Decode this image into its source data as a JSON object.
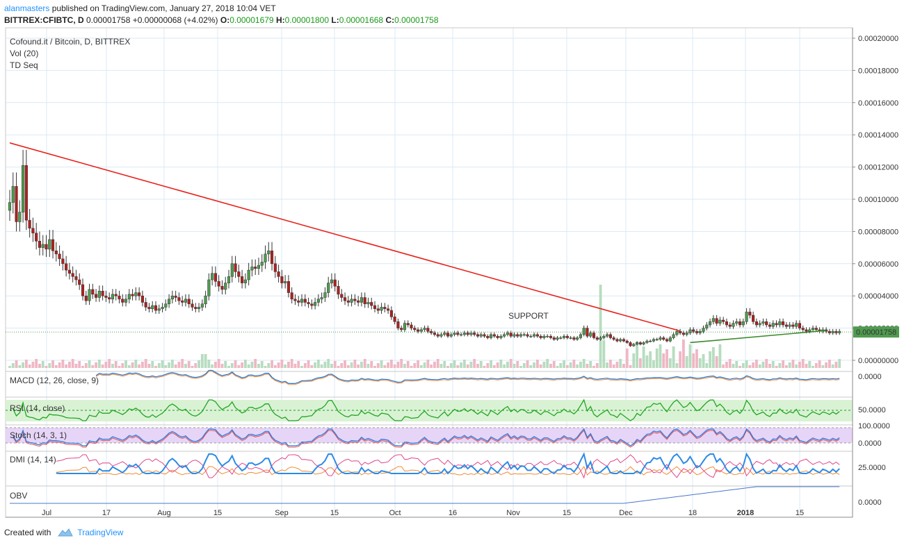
{
  "header": {
    "author": "alanmasters",
    "published_text": "published on TradingView.com, January 27, 2018 10:04 VET",
    "symbol": "BITTREX:CFIBTC, D",
    "last": "0.00001758",
    "change": "+0.00000068 (+4.02%)",
    "open_label": "O:",
    "open": "0.00001679",
    "high_label": "H:",
    "high": "0.00001800",
    "low_label": "L:",
    "low": "0.00001668",
    "close_label": "C:",
    "close": "0.00001758"
  },
  "footer": {
    "created_with": "Created with",
    "brand": "TradingView"
  },
  "colors": {
    "up": "#4f9b4f",
    "down": "#b0201e",
    "trendline": "#e8221b",
    "support_line": "#3a8a2a",
    "macd": "#1e74d6",
    "signal": "#f08a33",
    "rsi": "#22a522",
    "rsi_band": "#d9f2d4",
    "stoch_band": "#e6d5f7",
    "stoch_k": "#2b7be0",
    "stoch_d": "#e34b4b",
    "dmi_plus": "#2b8be6",
    "dmi_minus": "#e0458b",
    "adx": "#f08a33",
    "obv": "#4a78c8",
    "last_price_tag": "#4f9b4f"
  },
  "chart_data": {
    "type": "candlestick",
    "title": "Cofound.it / Bitcoin, D, BITTREX",
    "indicators_main": [
      "Vol (20)",
      "TD Seq"
    ],
    "annotation": "SUPPORT",
    "last_price_label": "0.00001758",
    "y_ticks": [
      "0.00020000",
      "0.00018000",
      "0.00016000",
      "0.00014000",
      "0.00012000",
      "0.00010000",
      "0.00008000",
      "0.00006000",
      "0.00004000",
      "0.00002000",
      "0.00000000"
    ],
    "ylim": [
      0,
      0.0002
    ],
    "x_ticks": [
      "Jul",
      "17",
      "Aug",
      "15",
      "Sep",
      "15",
      "Oct",
      "16",
      "Nov",
      "15",
      "Dec",
      "18",
      "2018",
      "15"
    ],
    "trendline": {
      "from": [
        0,
        0.000135
      ],
      "to": [
        202,
        1.82e-05
      ]
    },
    "support_line": {
      "from": [
        205,
        1.1e-05
      ],
      "to": [
        246,
        1.85e-05
      ]
    },
    "close_series": [
      9.8e-05,
      0.000108,
      8.6e-05,
      9.2e-05,
      0.000121,
      8.7e-05,
      8.2e-05,
      7.9e-05,
      7.4e-05,
      7e-05,
      7.2e-05,
      6.9e-05,
      7.5e-05,
      6.8e-05,
      6.6e-05,
      6.3e-05,
      6e-05,
      5.6e-05,
      5.4e-05,
      5.2e-05,
      5e-05,
      4.7e-05,
      4e-05,
      3.7e-05,
      4.4e-05,
      4.1e-05,
      3.9e-05,
      4.3e-05,
      4e-05,
      3.9e-05,
      3.8e-05,
      4.1e-05,
      4e-05,
      3.8e-05,
      3.6e-05,
      3.8e-05,
      4.1e-05,
      4e-05,
      4.2e-05,
      4e-05,
      3.6e-05,
      3.3e-05,
      3.2e-05,
      3.4e-05,
      3.1e-05,
      3.2e-05,
      3.3e-05,
      3.5e-05,
      3.8e-05,
      4e-05,
      3.9e-05,
      3.7e-05,
      3.6e-05,
      3.8e-05,
      3.5e-05,
      3.3e-05,
      3.2e-05,
      3.3e-05,
      3.5e-05,
      4e-05,
      5e-05,
      5.4e-05,
      4.9e-05,
      4.6e-05,
      4.4e-05,
      4.8e-05,
      5.2e-05,
      6e-05,
      5.5e-05,
      5.2e-05,
      4.8e-05,
      5e-05,
      5.6e-05,
      5.8e-05,
      5.7e-05,
      5.9e-05,
      6.1e-05,
      6.6e-05,
      6.8e-05,
      6e-05,
      5.5e-05,
      5.2e-05,
      4.8e-05,
      4.9e-05,
      4.2e-05,
      3.8e-05,
      3.7e-05,
      3.6e-05,
      3.8e-05,
      3.6e-05,
      3.5e-05,
      3.4e-05,
      3.6e-05,
      3.8e-05,
      3.9e-05,
      4.2e-05,
      4.8e-05,
      5e-05,
      4.6e-05,
      4.1e-05,
      3.9e-05,
      3.7e-05,
      3.6e-05,
      3.8e-05,
      3.7e-05,
      3.6e-05,
      3.9e-05,
      3.5e-05,
      3.6e-05,
      3.4e-05,
      3.2e-05,
      3.1e-05,
      3.3e-05,
      3.2e-05,
      3.1e-05,
      2.7e-05,
      2.4e-05,
      2e-05,
      1.9e-05,
      2.3e-05,
      2.2e-05,
      2e-05,
      1.9e-05,
      1.8e-05,
      1.9e-05,
      2e-05,
      1.8e-05,
      1.7e-05,
      1.6e-05,
      1.5e-05,
      1.6e-05,
      1.7e-05,
      1.5e-05,
      1.6e-05,
      1.7e-05,
      1.6e-05,
      1.6e-05,
      1.7e-05,
      1.6e-05,
      1.7e-05,
      1.6e-05,
      1.5e-05,
      1.6e-05,
      1.5e-05,
      1.4e-05,
      1.6e-05,
      1.5e-05,
      1.4e-05,
      1.5e-05,
      1.6e-05,
      1.7e-05,
      1.5e-05,
      1.6e-05,
      1.5e-05,
      1.6e-05,
      1.6e-05,
      1.5e-05,
      1.5e-05,
      1.6e-05,
      1.5e-05,
      1.4e-05,
      1.5e-05,
      1.5e-05,
      1.4e-05,
      1.3e-05,
      1.4e-05,
      1.4e-05,
      1.5e-05,
      1.4e-05,
      1.4e-05,
      1.3e-05,
      1.4e-05,
      1.6e-05,
      2e-05,
      1.5e-05,
      1.7e-05,
      1.4e-05,
      1.3e-05,
      1.4e-05,
      1.5e-05,
      1.6e-05,
      1.4e-05,
      1.3e-05,
      1.2e-05,
      1.3e-05,
      1.2e-05,
      1.1e-05,
      9e-06,
      1e-05,
      1.1e-05,
      1e-05,
      1.1e-05,
      1.2e-05,
      1.2e-05,
      1.3e-05,
      1.3e-05,
      1.4e-05,
      1.3e-05,
      1.2e-05,
      1.4e-05,
      1.6e-05,
      1.8e-05,
      1.7e-05,
      1.6e-05,
      1.7e-05,
      1.9e-05,
      1.8e-05,
      1.7e-05,
      1.8e-05,
      2e-05,
      2.2e-05,
      2.4e-05,
      2.6e-05,
      2.3e-05,
      2.5e-05,
      2.4e-05,
      2.2e-05,
      2.1e-05,
      2.3e-05,
      2.4e-05,
      2.2e-05,
      2.4e-05,
      3e-05,
      2.8e-05,
      2.4e-05,
      2.2e-05,
      2.3e-05,
      2.4e-05,
      2.2e-05,
      2.1e-05,
      2.3e-05,
      2.2e-05,
      2.4e-05,
      2.2e-05,
      2.1e-05,
      2.2e-05,
      2.1e-05,
      2.3e-05,
      2e-05,
      1.9e-05,
      1.8e-05,
      1.9e-05,
      2e-05,
      1.9e-05,
      1.8e-05,
      1.9e-05,
      1.8e-05,
      1.7e-05,
      1.8e-05,
      1.7e-05,
      1.8e-05
    ]
  },
  "panes": {
    "macd": {
      "label": "MACD (12, 26, close, 9)",
      "tick": "0.0000"
    },
    "rsi": {
      "label": "RSI (14, close)",
      "tick": "50.0000"
    },
    "stoch": {
      "label": "Stoch (14, 3, 1)",
      "tick": "100.0000",
      "tick2": "0.0000"
    },
    "dmi": {
      "label": "DMI (14, 14)",
      "tick": "25.0000"
    },
    "obv": {
      "label": "OBV",
      "tick": "0.0000"
    }
  }
}
